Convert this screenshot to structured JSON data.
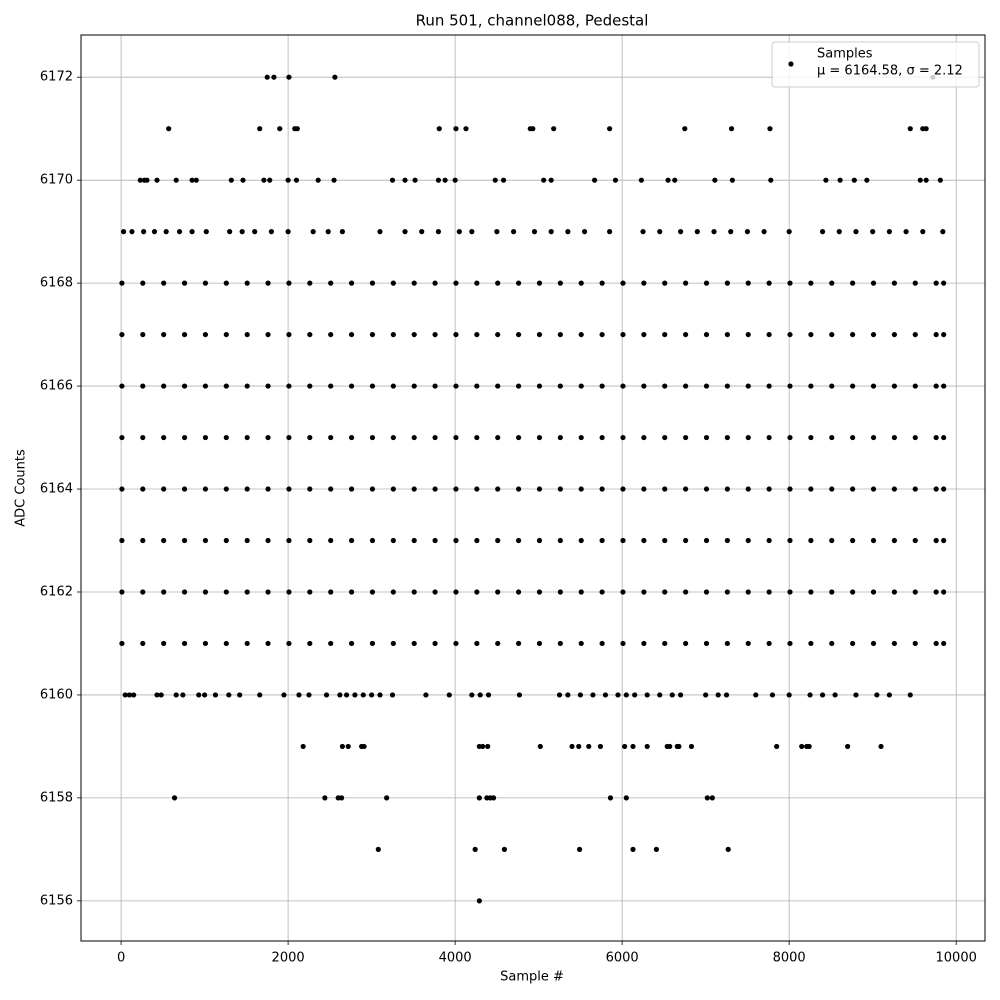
{
  "chart_data": {
    "type": "scatter",
    "title": "Run 501, channel088, Pedestal",
    "x_label": "Sample #",
    "y_label": "ADC Counts",
    "legend_position": "upper right",
    "stats_label": "μ = 6164.58, σ = 2.12",
    "grid": true,
    "xlim": [
      -480,
      10345
    ],
    "ylim": [
      6155.22,
      6172.82
    ],
    "xticks": [
      0,
      2000,
      4000,
      6000,
      8000,
      10000
    ],
    "yticks": [
      6156,
      6158,
      6160,
      6162,
      6164,
      6166,
      6168,
      6170,
      6172
    ],
    "series": [
      {
        "name": "Samples",
        "color": "#000000",
        "x": [
          1750,
          1830,
          2010,
          2560,
          9720,
          570,
          1660,
          1900,
          2080,
          2110,
          3810,
          4010,
          4130,
          4900,
          4930,
          5180,
          5850,
          6750,
          7310,
          7770,
          9450,
          9600,
          9640,
          230,
          280,
          310,
          430,
          660,
          850,
          900,
          1320,
          1460,
          1710,
          1780,
          2000,
          2100,
          2360,
          2550,
          3250,
          3400,
          3520,
          3800,
          3880,
          4000,
          4480,
          4580,
          5060,
          5150,
          5670,
          5920,
          6230,
          6550,
          6630,
          7110,
          7320,
          7780,
          8440,
          8610,
          8780,
          8930,
          9570,
          9640,
          9810,
          30,
          130,
          270,
          400,
          540,
          700,
          850,
          1020,
          1300,
          1450,
          1600,
          1800,
          2000,
          2300,
          2480,
          2650,
          3100,
          3400,
          3600,
          3800,
          4050,
          4200,
          4500,
          4700,
          4950,
          5150,
          5350,
          5550,
          5850,
          6250,
          6450,
          6700,
          6900,
          7100,
          7300,
          7500,
          7700,
          8000,
          8400,
          8600,
          8800,
          9000,
          9200,
          9400,
          9600,
          9840,
          10,
          260,
          510,
          760,
          1010,
          1260,
          1510,
          1760,
          2010,
          2260,
          2510,
          2760,
          3010,
          3260,
          3510,
          3760,
          4010,
          4260,
          4510,
          4760,
          5010,
          5260,
          5510,
          5760,
          6010,
          6260,
          6510,
          6760,
          7010,
          7260,
          7510,
          7760,
          8010,
          8260,
          8510,
          8760,
          9010,
          9260,
          9510,
          9760,
          9850,
          10,
          260,
          510,
          760,
          1010,
          1260,
          1510,
          1760,
          2010,
          2260,
          2510,
          2760,
          3010,
          3260,
          3510,
          3760,
          4010,
          4260,
          4510,
          4760,
          5010,
          5260,
          5510,
          5760,
          6010,
          6260,
          6510,
          6760,
          7010,
          7260,
          7510,
          7760,
          8010,
          8260,
          8510,
          8760,
          9010,
          9260,
          9510,
          9760,
          9850,
          10,
          260,
          510,
          760,
          1010,
          1260,
          1510,
          1760,
          2010,
          2260,
          2510,
          2760,
          3010,
          3260,
          3510,
          3760,
          4010,
          4260,
          4510,
          4760,
          5010,
          5260,
          5510,
          5760,
          6010,
          6260,
          6510,
          6760,
          7010,
          7260,
          7510,
          7760,
          8010,
          8260,
          8510,
          8760,
          9010,
          9260,
          9510,
          9760,
          9850,
          10,
          260,
          510,
          760,
          1010,
          1260,
          1510,
          1760,
          2010,
          2260,
          2510,
          2760,
          3010,
          3260,
          3510,
          3760,
          4010,
          4260,
          4510,
          4760,
          5010,
          5260,
          5510,
          5760,
          6010,
          6260,
          6510,
          6760,
          7010,
          7260,
          7510,
          7760,
          8010,
          8260,
          8510,
          8760,
          9010,
          9260,
          9510,
          9760,
          9850,
          10,
          260,
          510,
          760,
          1010,
          1260,
          1510,
          1760,
          2010,
          2260,
          2510,
          2760,
          3010,
          3260,
          3510,
          3760,
          4010,
          4260,
          4510,
          4760,
          5010,
          5260,
          5510,
          5760,
          6010,
          6260,
          6510,
          6760,
          7010,
          7260,
          7510,
          7760,
          8010,
          8260,
          8510,
          8760,
          9010,
          9260,
          9510,
          9760,
          9850,
          10,
          260,
          510,
          760,
          1010,
          1260,
          1510,
          1760,
          2010,
          2260,
          2510,
          2760,
          3010,
          3260,
          3510,
          3760,
          4010,
          4260,
          4510,
          4760,
          5010,
          5260,
          5510,
          5760,
          6010,
          6260,
          6510,
          6760,
          7010,
          7260,
          7510,
          7760,
          8010,
          8260,
          8510,
          8760,
          9010,
          9260,
          9510,
          9760,
          9850,
          10,
          260,
          510,
          760,
          1010,
          1260,
          1510,
          1760,
          2010,
          2260,
          2510,
          2760,
          3010,
          3260,
          3510,
          3760,
          4010,
          4260,
          4510,
          4760,
          5010,
          5260,
          5510,
          5760,
          6010,
          6260,
          6510,
          6760,
          7010,
          7260,
          7510,
          7760,
          8010,
          8260,
          8510,
          8760,
          9010,
          9260,
          9510,
          9760,
          9850,
          10,
          260,
          510,
          760,
          1010,
          1260,
          1510,
          1760,
          2010,
          2260,
          2510,
          2760,
          3010,
          3260,
          3510,
          3760,
          4010,
          4260,
          4510,
          4760,
          5010,
          5260,
          5510,
          5760,
          6010,
          6260,
          6510,
          6760,
          7010,
          7260,
          7510,
          7760,
          8010,
          8260,
          8510,
          8760,
          9010,
          9260,
          9510,
          9760,
          9850,
          50,
          100,
          150,
          430,
          480,
          660,
          740,
          930,
          1000,
          1130,
          1290,
          1420,
          1660,
          1950,
          2130,
          2250,
          2460,
          2620,
          2700,
          2800,
          2900,
          3000,
          3100,
          3250,
          3650,
          3930,
          4200,
          4300,
          4400,
          4770,
          5250,
          5350,
          5500,
          5650,
          5800,
          5950,
          6050,
          6150,
          6300,
          6450,
          6600,
          6700,
          7000,
          7150,
          7250,
          7600,
          7800,
          8000,
          8250,
          8400,
          8550,
          8800,
          9050,
          9200,
          9450,
          2180,
          2650,
          2720,
          2880,
          2910,
          4290,
          4330,
          4390,
          5020,
          5400,
          5480,
          5600,
          5740,
          6030,
          6130,
          6300,
          6540,
          6570,
          6660,
          6680,
          6830,
          7850,
          8150,
          8210,
          8240,
          8700,
          9100,
          640,
          2440,
          2600,
          2640,
          3180,
          4290,
          4380,
          4420,
          4460,
          5860,
          6050,
          7020,
          7080,
          3080,
          4240,
          4590,
          5490,
          6130,
          6410,
          7270,
          4290
        ],
        "values": [
          6172,
          6172,
          6172,
          6172,
          6172,
          6171,
          6171,
          6171,
          6171,
          6171,
          6171,
          6171,
          6171,
          6171,
          6171,
          6171,
          6171,
          6171,
          6171,
          6171,
          6171,
          6171,
          6171,
          6170,
          6170,
          6170,
          6170,
          6170,
          6170,
          6170,
          6170,
          6170,
          6170,
          6170,
          6170,
          6170,
          6170,
          6170,
          6170,
          6170,
          6170,
          6170,
          6170,
          6170,
          6170,
          6170,
          6170,
          6170,
          6170,
          6170,
          6170,
          6170,
          6170,
          6170,
          6170,
          6170,
          6170,
          6170,
          6170,
          6170,
          6170,
          6170,
          6170,
          6169,
          6169,
          6169,
          6169,
          6169,
          6169,
          6169,
          6169,
          6169,
          6169,
          6169,
          6169,
          6169,
          6169,
          6169,
          6169,
          6169,
          6169,
          6169,
          6169,
          6169,
          6169,
          6169,
          6169,
          6169,
          6169,
          6169,
          6169,
          6169,
          6169,
          6169,
          6169,
          6169,
          6169,
          6169,
          6169,
          6169,
          6169,
          6169,
          6169,
          6169,
          6169,
          6169,
          6169,
          6169,
          6169,
          6168,
          6168,
          6168,
          6168,
          6168,
          6168,
          6168,
          6168,
          6168,
          6168,
          6168,
          6168,
          6168,
          6168,
          6168,
          6168,
          6168,
          6168,
          6168,
          6168,
          6168,
          6168,
          6168,
          6168,
          6168,
          6168,
          6168,
          6168,
          6168,
          6168,
          6168,
          6168,
          6168,
          6168,
          6168,
          6168,
          6168,
          6168,
          6168,
          6168,
          6168,
          6167,
          6167,
          6167,
          6167,
          6167,
          6167,
          6167,
          6167,
          6167,
          6167,
          6167,
          6167,
          6167,
          6167,
          6167,
          6167,
          6167,
          6167,
          6167,
          6167,
          6167,
          6167,
          6167,
          6167,
          6167,
          6167,
          6167,
          6167,
          6167,
          6167,
          6167,
          6167,
          6167,
          6167,
          6167,
          6167,
          6167,
          6167,
          6167,
          6167,
          6167,
          6166,
          6166,
          6166,
          6166,
          6166,
          6166,
          6166,
          6166,
          6166,
          6166,
          6166,
          6166,
          6166,
          6166,
          6166,
          6166,
          6166,
          6166,
          6166,
          6166,
          6166,
          6166,
          6166,
          6166,
          6166,
          6166,
          6166,
          6166,
          6166,
          6166,
          6166,
          6166,
          6166,
          6166,
          6166,
          6166,
          6166,
          6166,
          6166,
          6166,
          6166,
          6165,
          6165,
          6165,
          6165,
          6165,
          6165,
          6165,
          6165,
          6165,
          6165,
          6165,
          6165,
          6165,
          6165,
          6165,
          6165,
          6165,
          6165,
          6165,
          6165,
          6165,
          6165,
          6165,
          6165,
          6165,
          6165,
          6165,
          6165,
          6165,
          6165,
          6165,
          6165,
          6165,
          6165,
          6165,
          6165,
          6165,
          6165,
          6165,
          6165,
          6165,
          6164,
          6164,
          6164,
          6164,
          6164,
          6164,
          6164,
          6164,
          6164,
          6164,
          6164,
          6164,
          6164,
          6164,
          6164,
          6164,
          6164,
          6164,
          6164,
          6164,
          6164,
          6164,
          6164,
          6164,
          6164,
          6164,
          6164,
          6164,
          6164,
          6164,
          6164,
          6164,
          6164,
          6164,
          6164,
          6164,
          6164,
          6164,
          6164,
          6164,
          6164,
          6163,
          6163,
          6163,
          6163,
          6163,
          6163,
          6163,
          6163,
          6163,
          6163,
          6163,
          6163,
          6163,
          6163,
          6163,
          6163,
          6163,
          6163,
          6163,
          6163,
          6163,
          6163,
          6163,
          6163,
          6163,
          6163,
          6163,
          6163,
          6163,
          6163,
          6163,
          6163,
          6163,
          6163,
          6163,
          6163,
          6163,
          6163,
          6163,
          6163,
          6163,
          6162,
          6162,
          6162,
          6162,
          6162,
          6162,
          6162,
          6162,
          6162,
          6162,
          6162,
          6162,
          6162,
          6162,
          6162,
          6162,
          6162,
          6162,
          6162,
          6162,
          6162,
          6162,
          6162,
          6162,
          6162,
          6162,
          6162,
          6162,
          6162,
          6162,
          6162,
          6162,
          6162,
          6162,
          6162,
          6162,
          6162,
          6162,
          6162,
          6162,
          6162,
          6161,
          6161,
          6161,
          6161,
          6161,
          6161,
          6161,
          6161,
          6161,
          6161,
          6161,
          6161,
          6161,
          6161,
          6161,
          6161,
          6161,
          6161,
          6161,
          6161,
          6161,
          6161,
          6161,
          6161,
          6161,
          6161,
          6161,
          6161,
          6161,
          6161,
          6161,
          6161,
          6161,
          6161,
          6161,
          6161,
          6161,
          6161,
          6161,
          6161,
          6161,
          6160,
          6160,
          6160,
          6160,
          6160,
          6160,
          6160,
          6160,
          6160,
          6160,
          6160,
          6160,
          6160,
          6160,
          6160,
          6160,
          6160,
          6160,
          6160,
          6160,
          6160,
          6160,
          6160,
          6160,
          6160,
          6160,
          6160,
          6160,
          6160,
          6160,
          6160,
          6160,
          6160,
          6160,
          6160,
          6160,
          6160,
          6160,
          6160,
          6160,
          6160,
          6160,
          6160,
          6160,
          6160,
          6160,
          6160,
          6160,
          6160,
          6160,
          6160,
          6160,
          6160,
          6160,
          6160,
          6159,
          6159,
          6159,
          6159,
          6159,
          6159,
          6159,
          6159,
          6159,
          6159,
          6159,
          6159,
          6159,
          6159,
          6159,
          6159,
          6159,
          6159,
          6159,
          6159,
          6159,
          6159,
          6159,
          6159,
          6159,
          6159,
          6159,
          6158,
          6158,
          6158,
          6158,
          6158,
          6158,
          6158,
          6158,
          6158,
          6158,
          6158,
          6158,
          6158,
          6157,
          6157,
          6157,
          6157,
          6157,
          6157,
          6157,
          6156
        ]
      }
    ]
  }
}
